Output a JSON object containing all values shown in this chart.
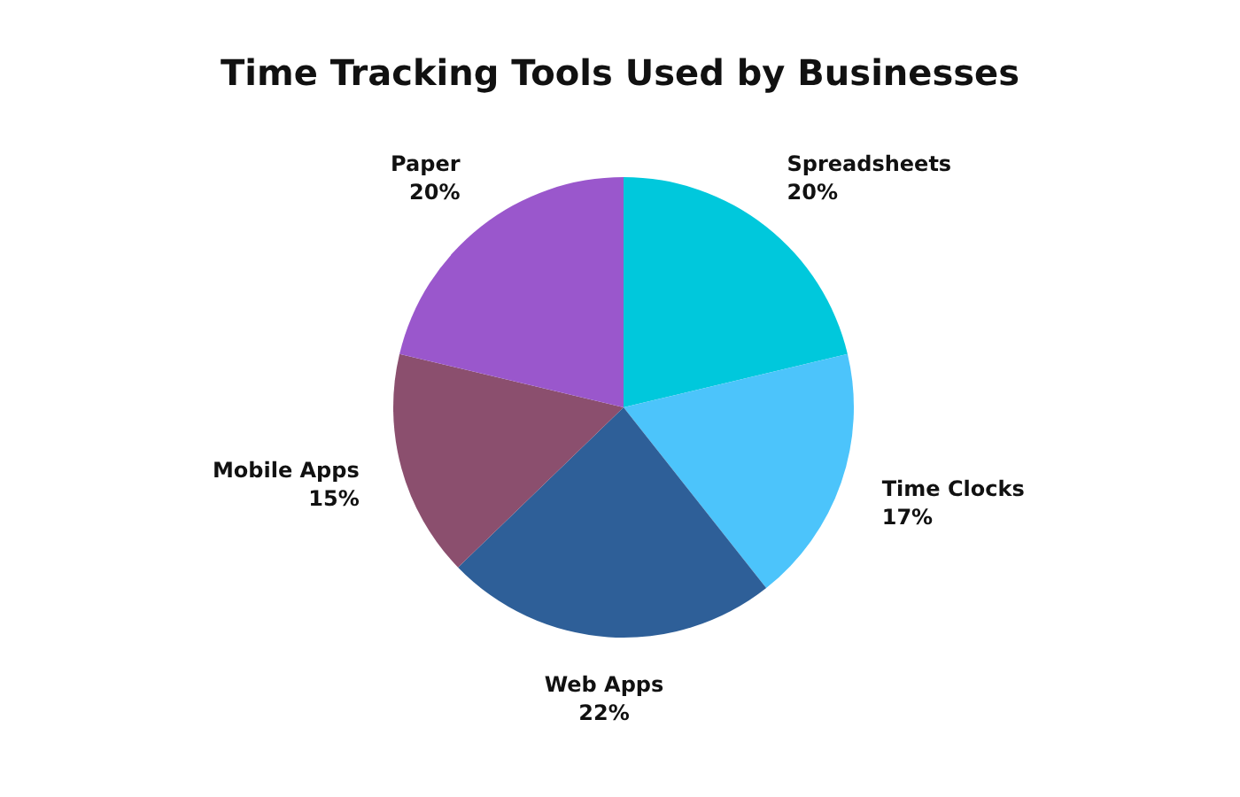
{
  "chart_data": {
    "type": "pie",
    "title": "Time Tracking Tools Used by Businesses",
    "categories": [
      "Spreadsheets",
      "Time Clocks",
      "Web Apps",
      "Mobile Apps",
      "Paper"
    ],
    "values": [
      20,
      17,
      22,
      15,
      20
    ],
    "value_labels": [
      "20%",
      "17%",
      "22%",
      "15%",
      "20%"
    ],
    "colors": [
      "#00c8dc",
      "#4cc4fb",
      "#2e5f98",
      "#8b4f6e",
      "#9a57cc"
    ]
  }
}
